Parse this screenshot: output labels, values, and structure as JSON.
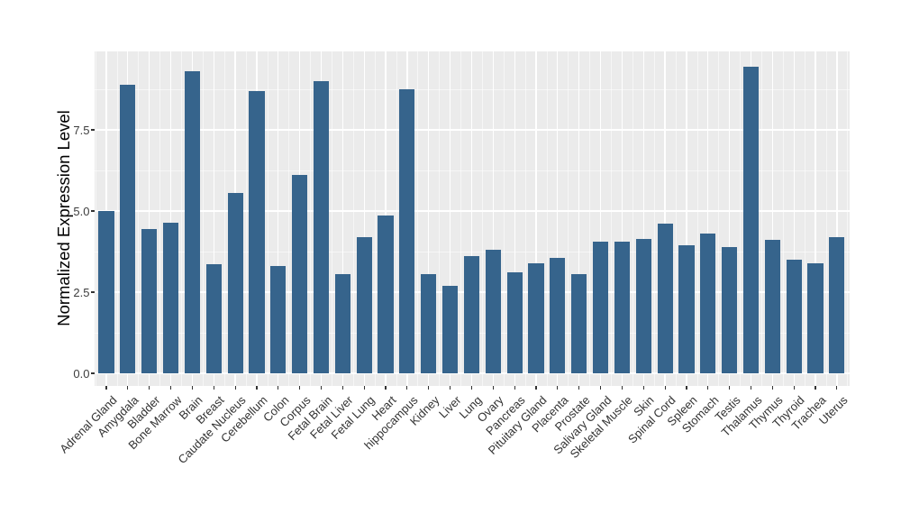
{
  "chart_data": {
    "type": "bar",
    "title": "",
    "xlabel": "",
    "ylabel": "Normalized Expression Level",
    "legend_position": "none",
    "grid": "major and minor white gridlines on gray panel",
    "categories": [
      "Adrenal Gland",
      "Amygdala",
      "Bladder",
      "Bone Marrow",
      "Brain",
      "Breast",
      "Caudate Nucleus",
      "Cerebellum",
      "Colon",
      "Corpus",
      "Fetal Brain",
      "Fetal Liver",
      "Fetal Lung",
      "Heart",
      "hippocampus",
      "Kidney",
      "Liver",
      "Lung",
      "Ovary",
      "Pancreas",
      "Pituitary Gland",
      "Placenta",
      "Prostate",
      "Salivary Gland",
      "Skeletal Muscle",
      "Skin",
      "Spinal Cord",
      "Spleen",
      "Stomach",
      "Testis",
      "Thalamus",
      "Thymus",
      "Thyroid",
      "Trachea",
      "Uterus"
    ],
    "values": [
      5.0,
      8.9,
      4.45,
      4.65,
      9.3,
      3.35,
      5.55,
      8.7,
      3.3,
      6.1,
      9.0,
      3.05,
      4.2,
      4.85,
      8.75,
      3.05,
      2.7,
      3.6,
      3.8,
      3.1,
      3.4,
      3.55,
      3.05,
      4.05,
      4.05,
      4.15,
      4.6,
      3.95,
      4.3,
      3.9,
      9.45,
      4.1,
      3.5,
      3.4,
      4.2
    ],
    "ylim": [
      -0.37,
      9.92
    ],
    "yticks": [
      {
        "label": "0.0",
        "value": 0.0
      },
      {
        "label": "2.5",
        "value": 2.5
      },
      {
        "label": "5.0",
        "value": 5.0
      },
      {
        "label": "7.5",
        "value": 7.5
      }
    ],
    "minor_yticks": [
      1.25,
      3.75,
      6.25,
      8.75
    ],
    "colors": {
      "bar_fill": "#36648C",
      "panel_background": "#EBEBEB",
      "grid_major": "#FFFFFF",
      "grid_minor": "#F5F5F5",
      "tick_mark": "#333333",
      "axis_text": "#3d3d3d",
      "axis_title": "#000000",
      "figure_background": "#FFFFFF"
    }
  }
}
